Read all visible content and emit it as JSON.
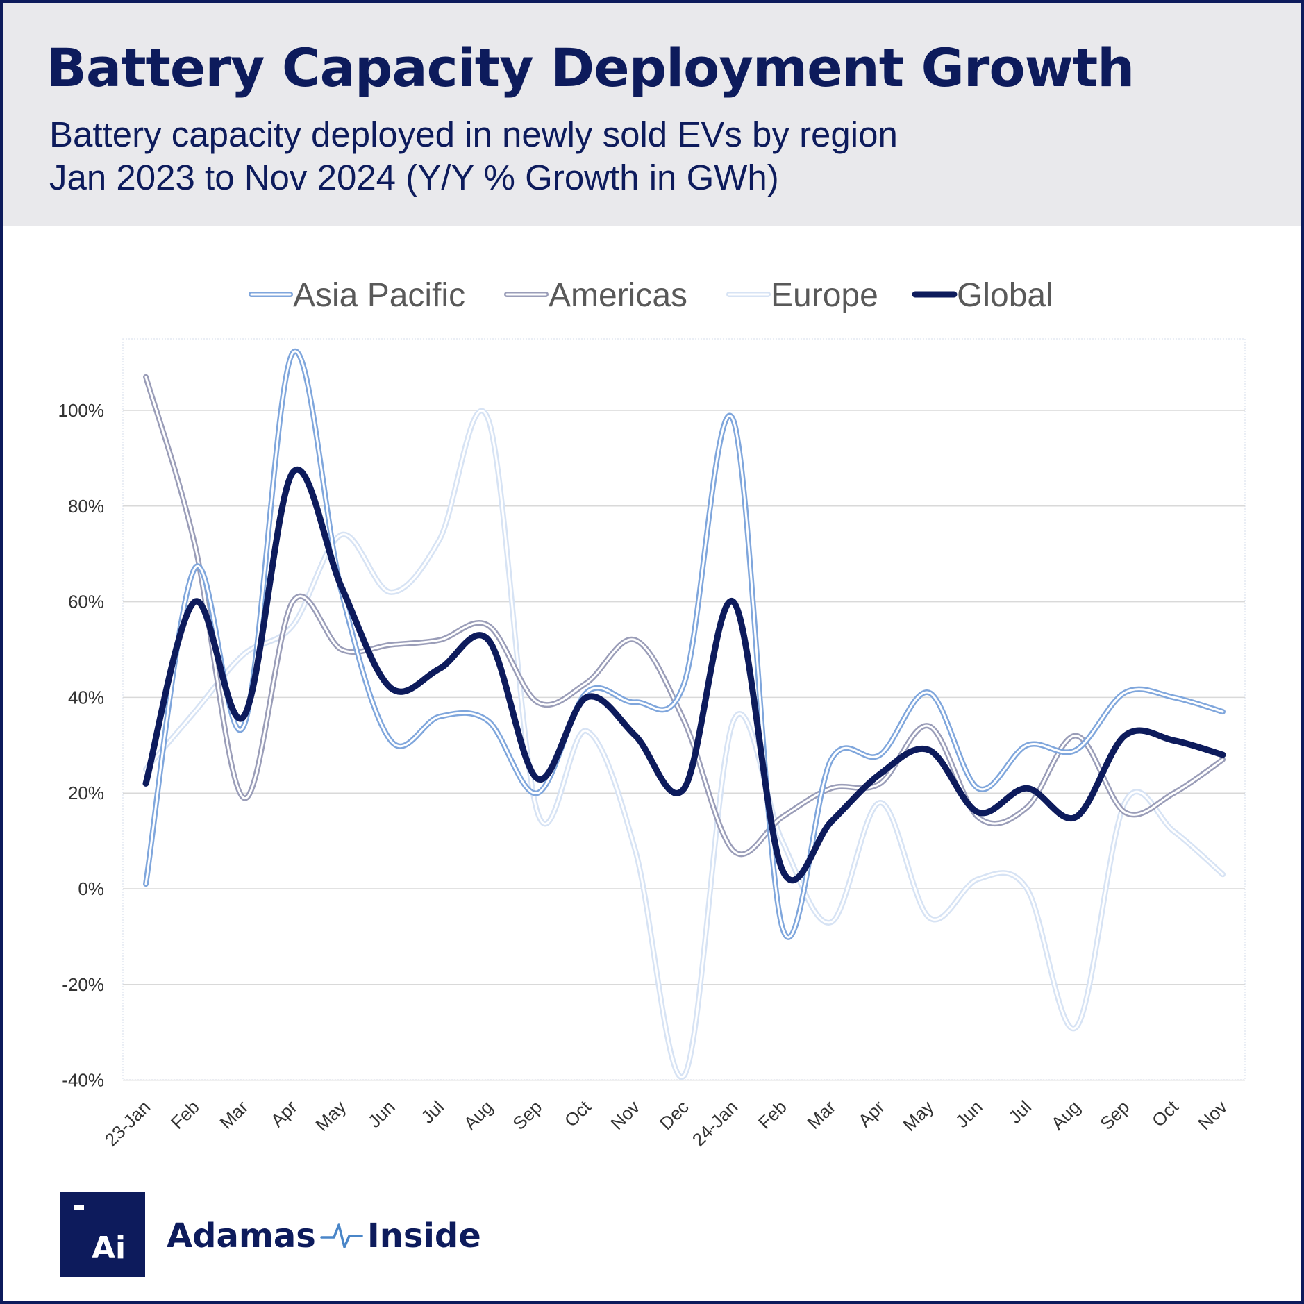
{
  "header": {
    "title": "Battery Capacity Deployment Growth",
    "subtitle_line1": "Battery capacity deployed in newly sold EVs by region",
    "subtitle_line2": "Jan 2023 to Nov 2024 (Y/Y % Growth in GWh)"
  },
  "branding": {
    "logo_mark": "Ai",
    "name_part1": "Adamas",
    "name_part2": "Inside"
  },
  "colors": {
    "navy": "#0d1b5c",
    "asia_pacific": "#7fa6dc",
    "americas": "#9a9db8",
    "europe": "#d7e3f4",
    "global": "#0d1b5c",
    "gridline": "#d9d9d9"
  },
  "chart_data": {
    "type": "line",
    "title": "Battery Capacity Deployment Growth",
    "xlabel": "",
    "ylabel": "",
    "ylim": [
      -40,
      115
    ],
    "y_ticks": [
      100,
      80,
      60,
      40,
      20,
      0,
      -20,
      -40
    ],
    "y_tick_labels": [
      "100%",
      "80%",
      "60%",
      "40%",
      "20%",
      "0%",
      "-20%",
      "-40%"
    ],
    "grid": true,
    "legend_position": "top-center",
    "categories": [
      "23-Jan",
      "Feb",
      "Mar",
      "Apr",
      "May",
      "Jun",
      "Jul",
      "Aug",
      "Sep",
      "Oct",
      "Nov",
      "Dec",
      "24-Jan",
      "Feb",
      "Mar",
      "Apr",
      "May",
      "Jun",
      "Jul",
      "Aug",
      "Sep",
      "Oct",
      "Nov"
    ],
    "series": [
      {
        "name": "Asia Pacific",
        "style": "double",
        "values": [
          1,
          67,
          34,
          112,
          62,
          31,
          36,
          35,
          20,
          41,
          39,
          43,
          98,
          -8,
          27,
          28,
          41,
          21,
          30,
          29,
          41,
          40,
          37
        ]
      },
      {
        "name": "Americas",
        "style": "double",
        "values": [
          107,
          72,
          19,
          60,
          50,
          51,
          52,
          55,
          39,
          43,
          52,
          35,
          8,
          15,
          21,
          22,
          34,
          15,
          17,
          32,
          16,
          20,
          27
        ]
      },
      {
        "name": "Europe",
        "style": "double",
        "values": [
          25,
          37,
          49,
          55,
          74,
          62,
          73,
          98,
          16,
          33,
          8,
          -39,
          35,
          10,
          -7,
          18,
          -6,
          2,
          0,
          -29,
          18,
          12,
          3
        ]
      },
      {
        "name": "Global",
        "style": "solid",
        "values": [
          22,
          60,
          36,
          87,
          63,
          42,
          46,
          52,
          23,
          40,
          32,
          21,
          60,
          4,
          14,
          24,
          29,
          16,
          21,
          15,
          32,
          31,
          28
        ]
      }
    ]
  }
}
